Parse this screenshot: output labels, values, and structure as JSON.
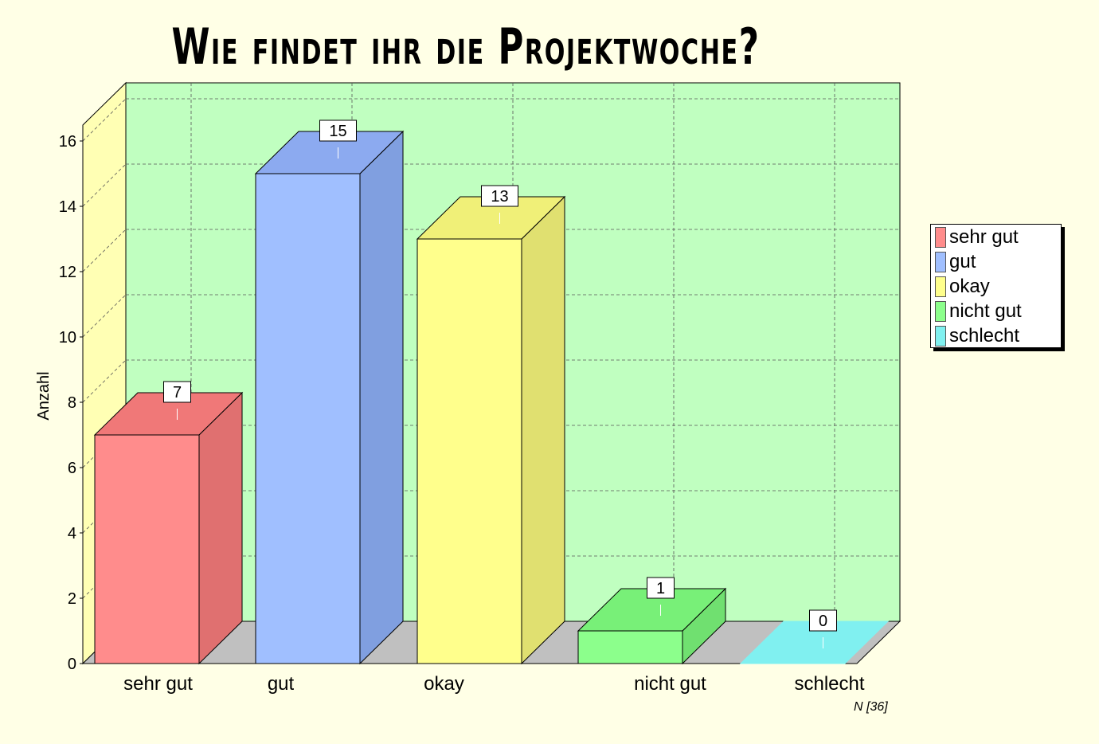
{
  "chart_data": {
    "type": "bar",
    "title": "Wie findet ihr die Projektwoche?",
    "ylabel": "Anzahl",
    "xlabel": "",
    "categories": [
      "sehr gut",
      "gut",
      "okay",
      "nicht gut",
      "schlecht"
    ],
    "values": [
      7,
      15,
      13,
      1,
      0
    ],
    "ylim": [
      0,
      16
    ],
    "yticks": [
      0,
      2,
      4,
      6,
      8,
      10,
      12,
      14,
      16
    ],
    "grid": true,
    "legend_position": "right",
    "note": "N [36]",
    "colors": {
      "front": [
        "#ff8c8c",
        "#a0bfff",
        "#ffff8c",
        "#8cff8c",
        "#80f0f0"
      ],
      "top": [
        "#f07878",
        "#8caaf0",
        "#f0f078",
        "#78f078",
        "#80f0f0"
      ],
      "side": [
        "#e07070",
        "#809fe0",
        "#e0e070",
        "#70e070",
        "#70e0e0"
      ],
      "background": "#ffffe6",
      "plot_back": "#c0ffc0",
      "plot_left_wall": "#ffffb4",
      "plot_floor": "#c0c0c0"
    }
  }
}
